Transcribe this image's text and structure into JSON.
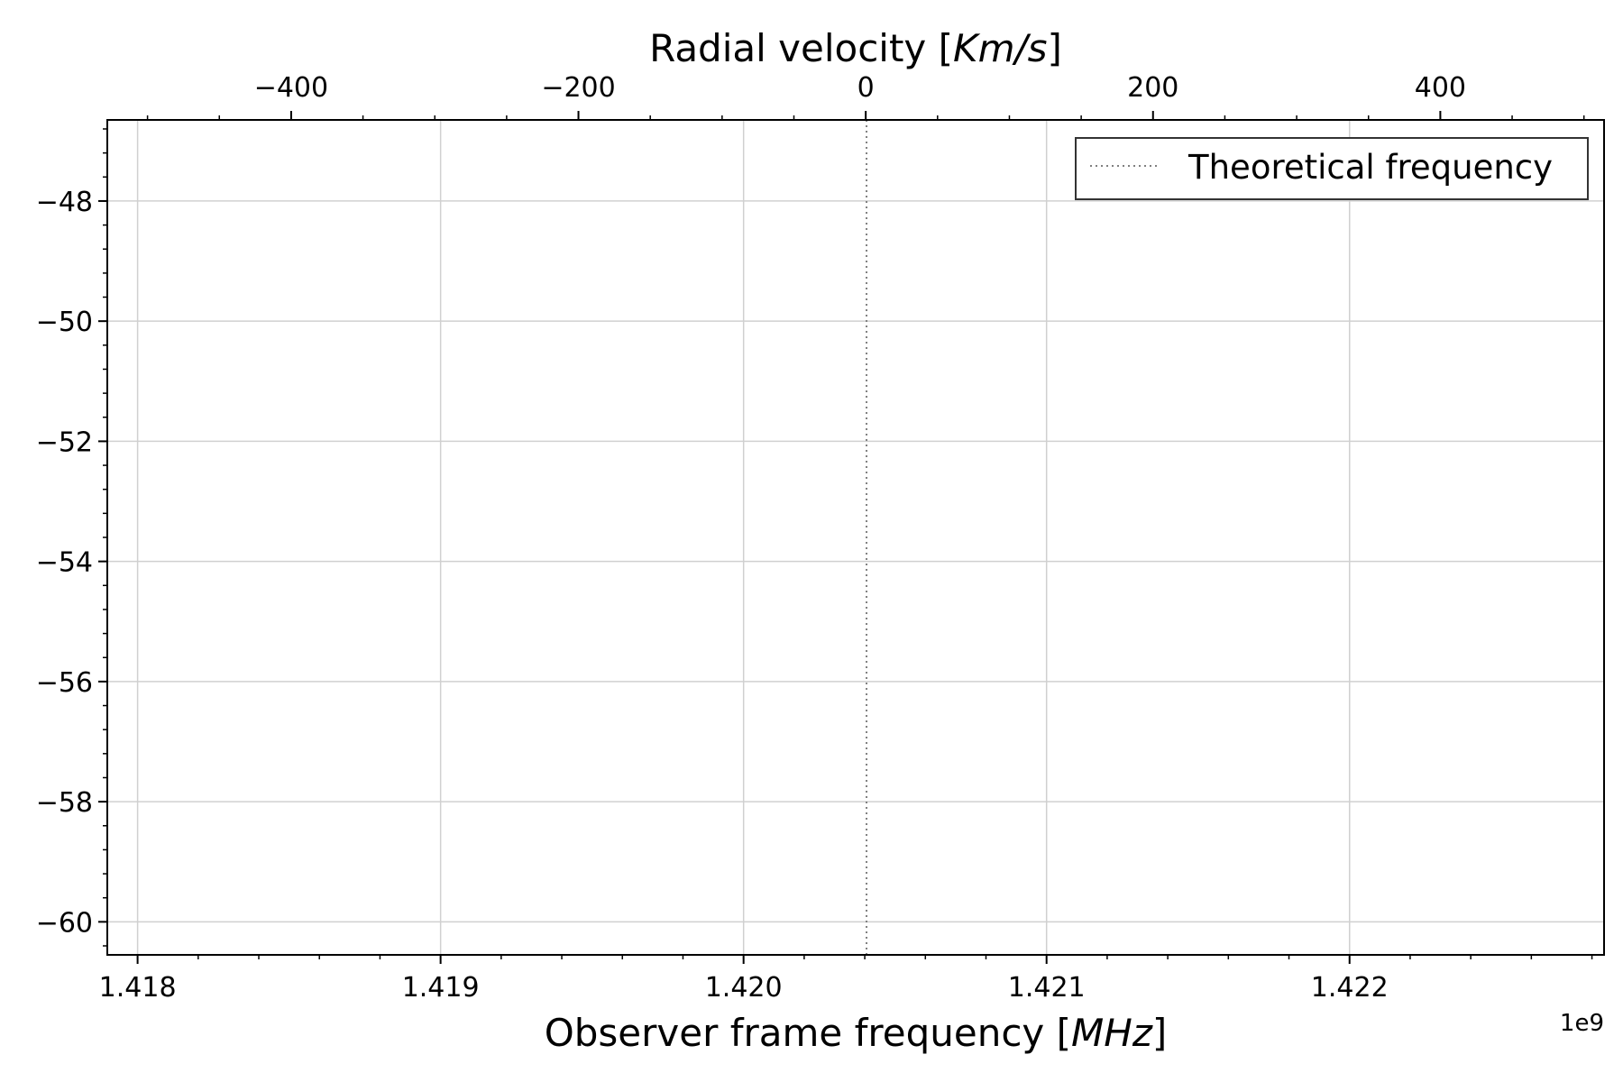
{
  "chart_data": {
    "type": "line",
    "title": "",
    "xlabel": "Observer frame frequency [MHz]",
    "xlabel_parts": [
      "Observer frame frequency [",
      "MHz",
      "]"
    ],
    "x2label": "Radial velocity [Km/s]",
    "x2label_parts": [
      "Radial velocity [",
      "Km/s",
      "]"
    ],
    "x_offset_label": "1e9",
    "xlim": [
      1.4179,
      1.42284
    ],
    "xticks": [
      1.418,
      1.419,
      1.42,
      1.421,
      1.422
    ],
    "xtick_labels": [
      "1.418",
      "1.419",
      "1.420",
      "1.421",
      "1.422"
    ],
    "x_minor_step": 0.0002,
    "x2lim": [
      -528,
      514
    ],
    "x2ticks": [
      -400,
      -200,
      0,
      200,
      400
    ],
    "x2tick_labels": [
      "−400",
      "−200",
      "0",
      "200",
      "400"
    ],
    "x2_minor_step": 50,
    "ylim": [
      -60.55,
      -46.65
    ],
    "yticks": [
      -48,
      -50,
      -52,
      -54,
      -56,
      -58,
      -60
    ],
    "ytick_labels": [
      "−48",
      "−50",
      "−52",
      "−54",
      "−56",
      "−58",
      "−60"
    ],
    "y_minor_step": 0.4,
    "grid": true,
    "legend_position": "upper right",
    "series": [
      {
        "name": "Theoretical frequency",
        "style": "dotted vertical line",
        "color": "#808080",
        "x": 1.4204058
      }
    ]
  }
}
